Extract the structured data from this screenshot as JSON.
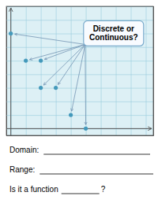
{
  "chart_data": {
    "type": "scatter",
    "x": [
      0,
      1,
      2,
      2,
      3,
      4,
      5
    ],
    "values": [
      7,
      5,
      5,
      3,
      3,
      1,
      0
    ],
    "color": "#4499bb",
    "xlim": [
      -0.3,
      9.5
    ],
    "ylim": [
      -0.5,
      9.0
    ],
    "xticks": [
      0,
      1,
      2,
      3,
      4,
      5,
      6,
      7,
      8,
      9
    ],
    "yticks": [
      0,
      1,
      2,
      3,
      4,
      5,
      6,
      7,
      8,
      9
    ],
    "grid": true,
    "tick_labels": false,
    "annotations": [
      "Discrete or\nContinuous?",
      "Domain:",
      "Range:",
      "Is it a function",
      "?"
    ]
  }
}
